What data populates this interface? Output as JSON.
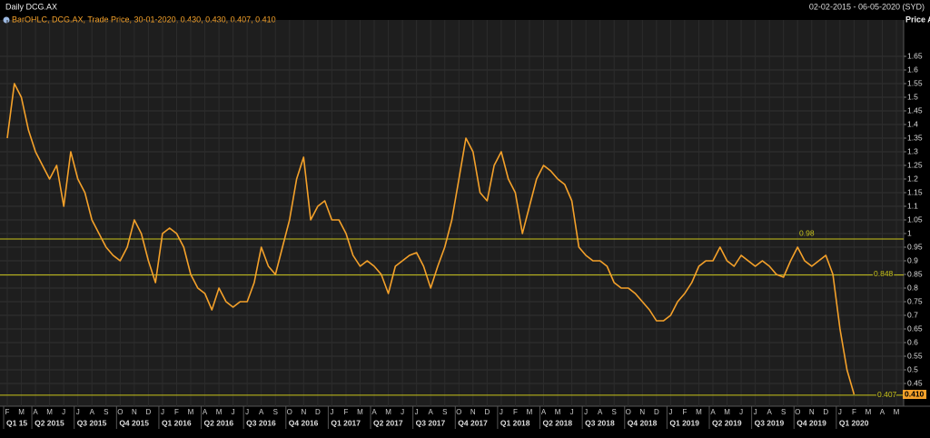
{
  "chart_data": {
    "type": "line",
    "title": "Daily DCG.AX",
    "subtitle": "02-02-2015 - 06-05-2020 (SYD)",
    "legend": "BarOHLC, DCG.AX, Trade Price, 30-01-2020, 0.430, 0.430, 0.407, 0.410",
    "y_label": "Price AUD",
    "color": "#f4a12a",
    "level_color": "#c9c41a",
    "grid": true,
    "ylim": [
      0.37,
      1.77
    ],
    "yticks": [
      0.45,
      0.5,
      0.55,
      0.6,
      0.65,
      0.7,
      0.75,
      0.8,
      0.85,
      0.9,
      0.95,
      1,
      1.05,
      1.1,
      1.15,
      1.2,
      1.25,
      1.3,
      1.35,
      1.4,
      1.45,
      1.5,
      1.55,
      1.6,
      1.65
    ],
    "levels": [
      0.98,
      0.848,
      0.407
    ],
    "last_price": {
      "value": 0.41,
      "label": "0.410"
    },
    "categories": [
      "F",
      null,
      "M",
      null,
      "A",
      null,
      "M",
      null,
      "J",
      null,
      "J",
      null,
      "A",
      null,
      "S",
      null,
      "O",
      null,
      "N",
      null,
      "D",
      null,
      "J",
      null,
      "F",
      null,
      "M",
      null,
      "A",
      null,
      "M",
      null,
      "J",
      null,
      "J",
      null,
      "A",
      null,
      "S",
      null,
      "O",
      null,
      "N",
      null,
      "D",
      null,
      "J",
      null,
      "F",
      null,
      "M",
      null,
      "A",
      null,
      "M",
      null,
      "J",
      null,
      "J",
      null,
      "A",
      null,
      "S",
      null,
      "O",
      null,
      "N",
      null,
      "D",
      null,
      "J",
      null,
      "F",
      null,
      "M",
      null,
      "A",
      null,
      "M",
      null,
      "J",
      null,
      "J",
      null,
      "A",
      null,
      "S",
      null,
      "O",
      null,
      "N",
      null,
      "D",
      null,
      "J",
      null,
      "F",
      null,
      "M",
      null,
      "A",
      null,
      "M",
      null,
      "J",
      null,
      "J",
      null,
      "A",
      null,
      "S",
      null,
      "O",
      null,
      "N",
      null,
      "D",
      null,
      "J",
      null,
      "F",
      null,
      "M",
      null,
      "A",
      null,
      "M",
      null
    ],
    "values": [
      1.35,
      1.55,
      1.5,
      1.38,
      1.3,
      1.25,
      1.2,
      1.25,
      1.1,
      1.3,
      1.2,
      1.15,
      1.05,
      1.0,
      0.95,
      0.92,
      0.9,
      0.95,
      1.05,
      1.0,
      0.9,
      0.82,
      1.0,
      1.02,
      1.0,
      0.95,
      0.85,
      0.8,
      0.78,
      0.72,
      0.8,
      0.75,
      0.73,
      0.75,
      0.75,
      0.82,
      0.95,
      0.88,
      0.85,
      0.95,
      1.05,
      1.2,
      1.28,
      1.05,
      1.1,
      1.12,
      1.05,
      1.05,
      1.0,
      0.92,
      0.88,
      0.9,
      0.88,
      0.85,
      0.78,
      0.88,
      0.9,
      0.92,
      0.93,
      0.88,
      0.8,
      0.88,
      0.95,
      1.05,
      1.2,
      1.35,
      1.3,
      1.15,
      1.12,
      1.25,
      1.3,
      1.2,
      1.15,
      1.0,
      1.1,
      1.2,
      1.25,
      1.23,
      1.2,
      1.18,
      1.12,
      0.95,
      0.92,
      0.9,
      0.9,
      0.88,
      0.82,
      0.8,
      0.8,
      0.78,
      0.75,
      0.72,
      0.68,
      0.68,
      0.7,
      0.75,
      0.78,
      0.82,
      0.88,
      0.9,
      0.9,
      0.95,
      0.9,
      0.88,
      0.92,
      0.9,
      0.88,
      0.9,
      0.88,
      0.85,
      0.84,
      0.9,
      0.95,
      0.9,
      0.88,
      0.9,
      0.92,
      0.85,
      0.65,
      0.5,
      0.41,
      null,
      null,
      null,
      null,
      null,
      null,
      null
    ],
    "quarters": [
      "Q1 15",
      "Q2 2015",
      "Q3 2015",
      "Q4 2015",
      "Q1 2016",
      "Q2 2016",
      "Q3 2016",
      "Q4 2016",
      "Q1 2017",
      "Q2 2017",
      "Q3 2017",
      "Q4 2017",
      "Q1 2018",
      "Q2 2018",
      "Q3 2018",
      "Q4 2018",
      "Q1 2019",
      "Q2 2019",
      "Q3 2019",
      "Q4 2019",
      "Q1 2020"
    ]
  }
}
